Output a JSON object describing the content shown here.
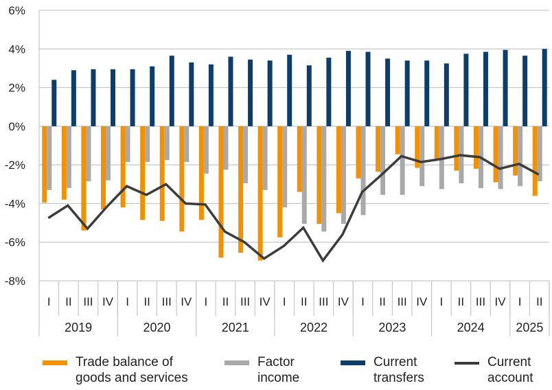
{
  "chart_data": {
    "type": "bar",
    "title": "",
    "xlabel": "",
    "ylabel": "",
    "ylim": [
      -8,
      6
    ],
    "yticks": [
      6,
      4,
      2,
      0,
      -2,
      -4,
      -6,
      -8
    ],
    "ytick_labels": [
      "6%",
      "4%",
      "2%",
      "0%",
      "-2%",
      "-4%",
      "-6%",
      "-8%"
    ],
    "grid": true,
    "legend_position": "bottom",
    "years": [
      {
        "label": "2019",
        "quarters": 4
      },
      {
        "label": "2020",
        "quarters": 4
      },
      {
        "label": "2021",
        "quarters": 4
      },
      {
        "label": "2022",
        "quarters": 4
      },
      {
        "label": "2023",
        "quarters": 4
      },
      {
        "label": "2024",
        "quarters": 4
      },
      {
        "label": "2025",
        "quarters": 2
      }
    ],
    "categories": [
      "I",
      "II",
      "III",
      "IV",
      "I",
      "II",
      "III",
      "IV",
      "I",
      "II",
      "III",
      "IV",
      "I",
      "II",
      "III",
      "IV",
      "I",
      "II",
      "III",
      "IV",
      "I",
      "II",
      "III",
      "IV",
      "I",
      "II"
    ],
    "series": [
      {
        "name": "Trade balance of goods and services",
        "kind": "bar",
        "color": "#f39200",
        "values": [
          -3.95,
          -3.8,
          -5.4,
          -4.3,
          -4.2,
          -4.85,
          -4.9,
          -5.45,
          -4.85,
          -6.8,
          -6.55,
          -6.95,
          -5.75,
          -3.4,
          -5.05,
          -4.5,
          -2.7,
          -2.35,
          -1.45,
          -2.15,
          -1.7,
          -2.3,
          -2.2,
          -2.9,
          -2.55,
          -3.6
        ]
      },
      {
        "name": "Factor income",
        "kind": "bar",
        "color": "#a8a9a8",
        "values": [
          -3.3,
          -3.2,
          -2.85,
          -2.8,
          -1.85,
          -1.85,
          -1.75,
          -1.85,
          -2.45,
          -2.25,
          -2.95,
          -3.3,
          -4.2,
          -5.05,
          -5.45,
          -5.05,
          -4.6,
          -3.55,
          -3.55,
          -3.1,
          -3.25,
          -2.95,
          -3.2,
          -3.25,
          -3.1,
          -2.85
        ]
      },
      {
        "name": "Current transfers",
        "kind": "bar",
        "color": "#0d3d6b",
        "values": [
          2.4,
          2.9,
          2.95,
          2.95,
          2.95,
          3.1,
          3.65,
          3.3,
          3.2,
          3.6,
          3.45,
          3.4,
          3.7,
          3.15,
          3.55,
          3.9,
          3.85,
          3.5,
          3.4,
          3.4,
          3.25,
          3.75,
          3.85,
          3.95,
          3.65,
          4.0
        ]
      },
      {
        "name": "Current account",
        "kind": "line",
        "color": "#3c3c3b",
        "values": [
          -4.75,
          -4.1,
          -5.3,
          -4.15,
          -3.1,
          -3.55,
          -3.0,
          -4.0,
          -4.05,
          -5.45,
          -6.0,
          -6.85,
          -6.2,
          -5.25,
          -6.95,
          -5.6,
          -3.4,
          -2.5,
          -1.55,
          -1.85,
          -1.7,
          -1.5,
          -1.6,
          -2.2,
          -1.95,
          -2.5
        ]
      }
    ]
  },
  "legend": {
    "items": [
      {
        "line1": "Trade balance of",
        "line2": "goods and services"
      },
      {
        "line1": "Factor",
        "line2": "income"
      },
      {
        "line1": "Current",
        "line2": "transfers"
      },
      {
        "line1": "Current",
        "line2": "account"
      }
    ]
  }
}
